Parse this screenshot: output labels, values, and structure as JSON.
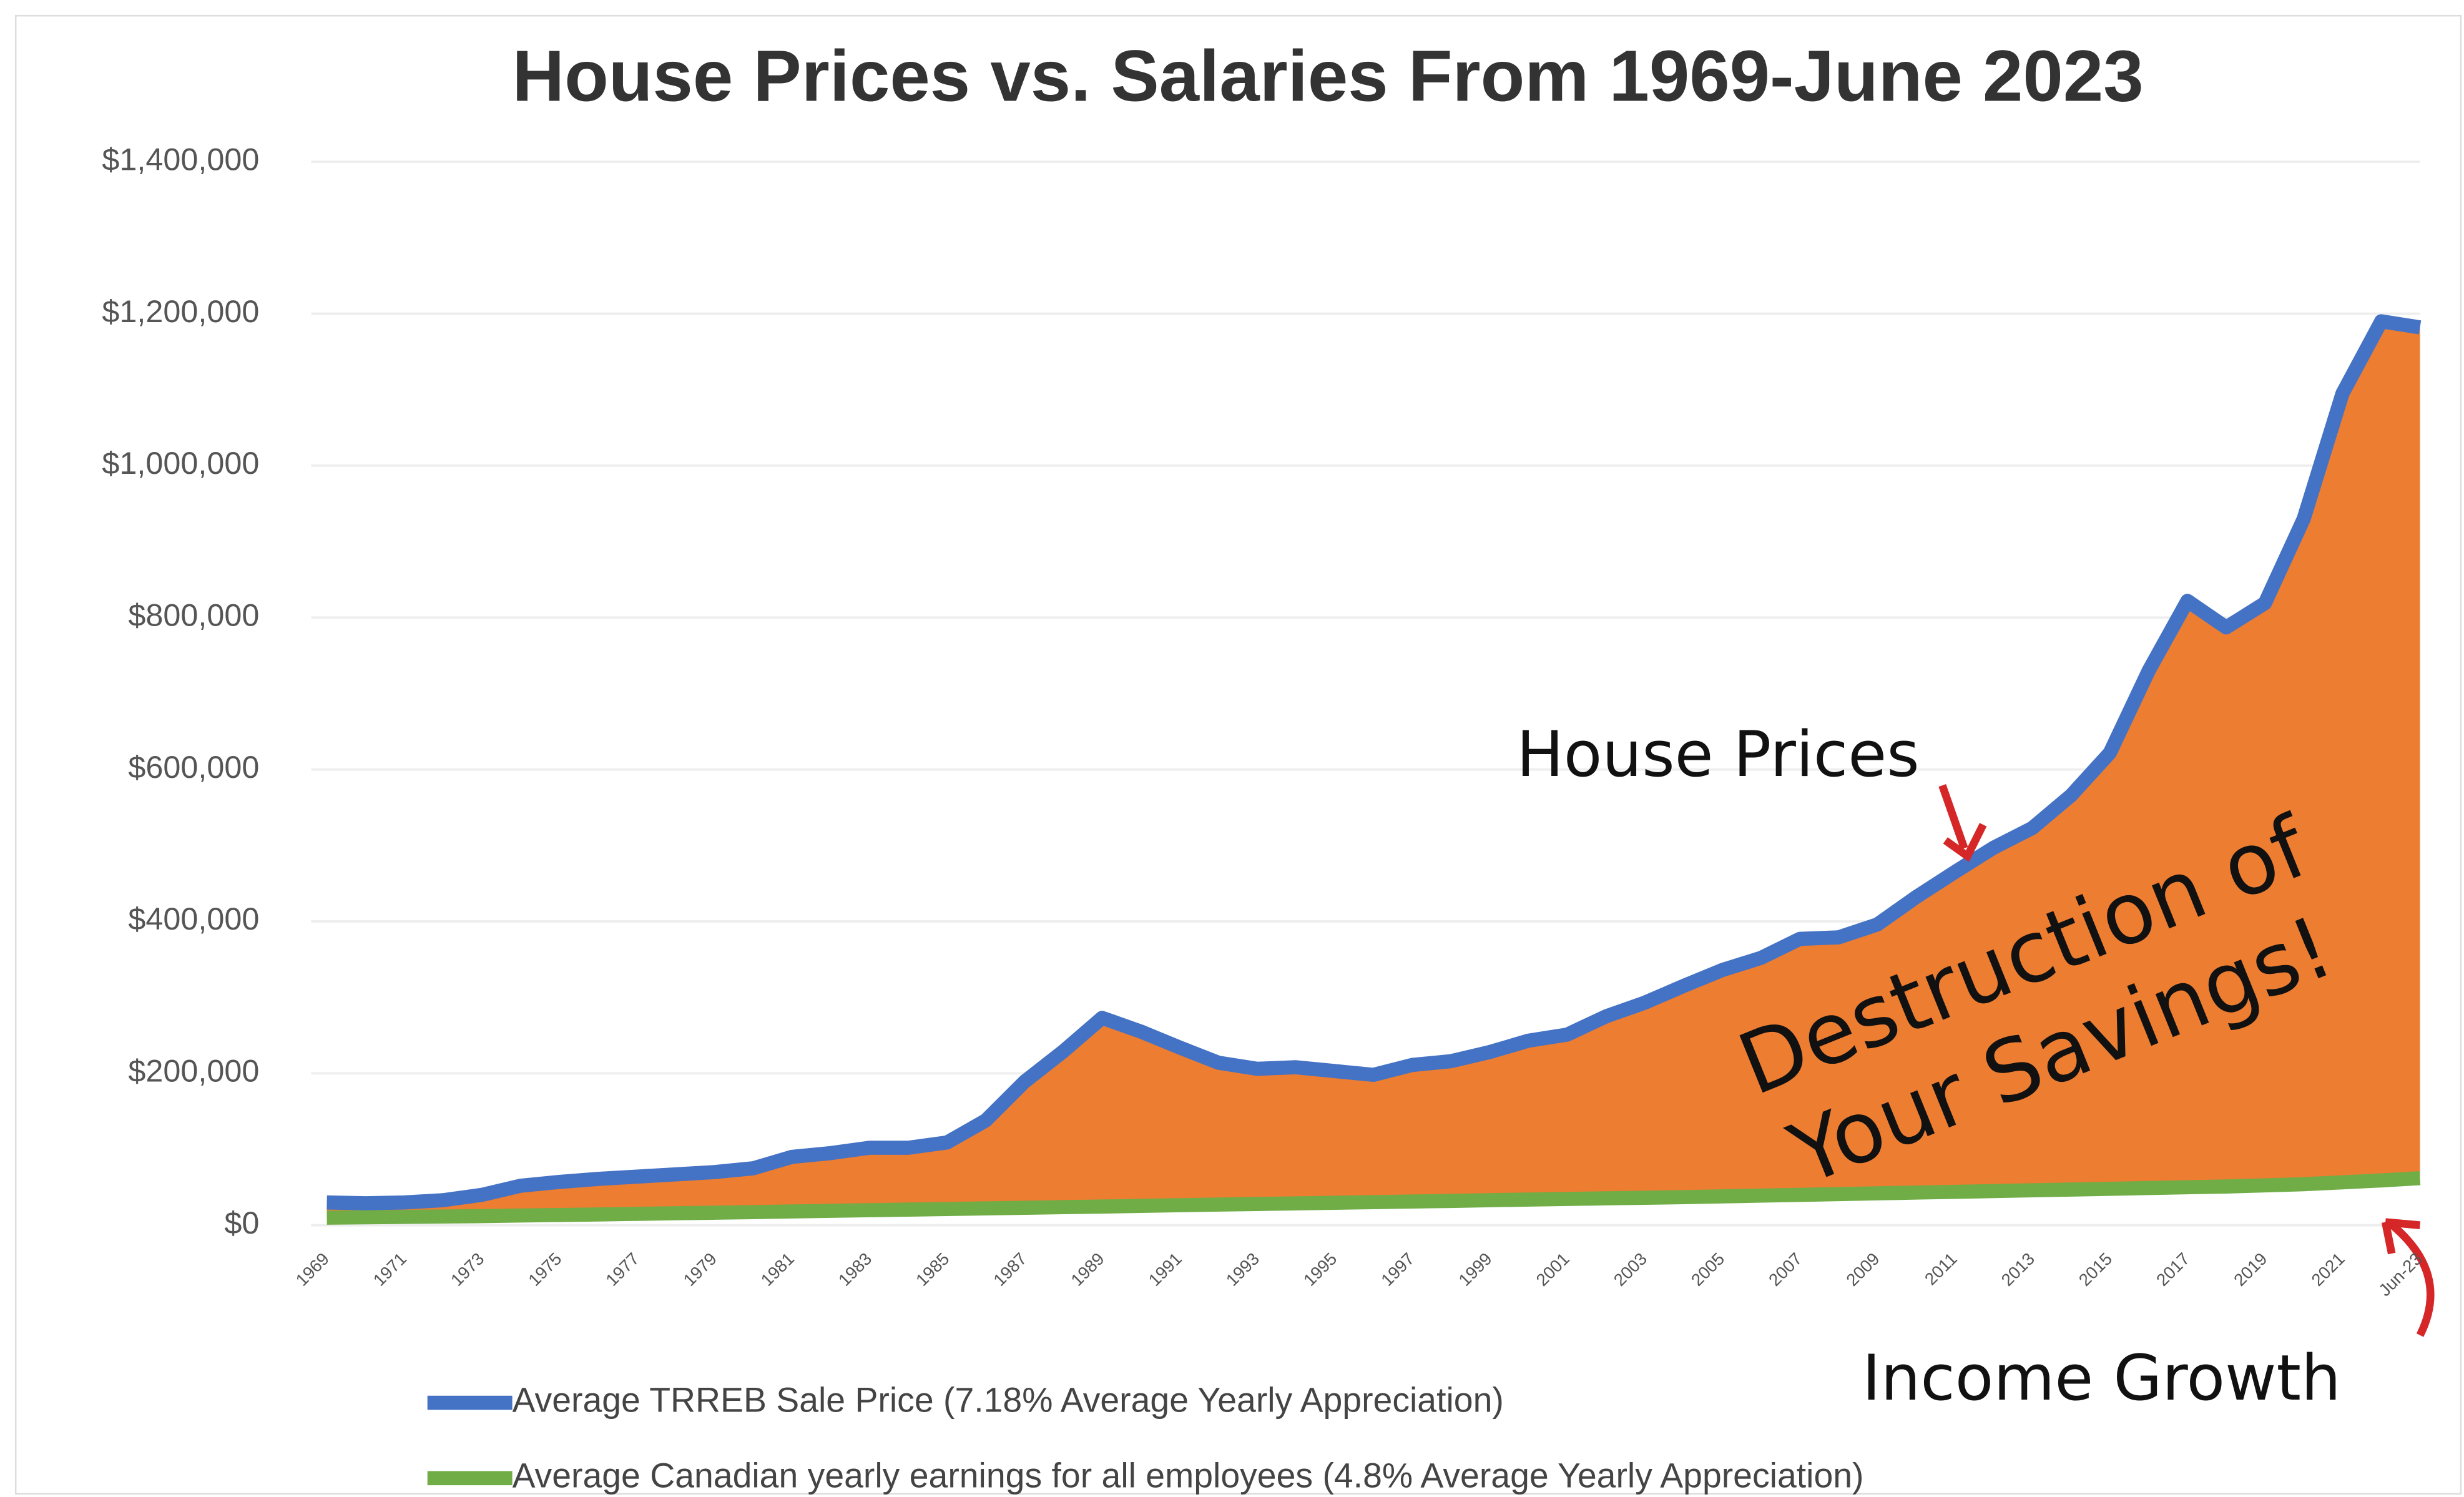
{
  "chart_data": {
    "type": "line",
    "title": "House Prices vs. Salaries From 1969-June 2023",
    "categories": [
      "1969",
      null,
      "1971",
      null,
      "1973",
      null,
      "1975",
      null,
      "1977",
      null,
      "1979",
      null,
      "1981",
      null,
      "1983",
      null,
      "1985",
      null,
      "1987",
      null,
      "1989",
      null,
      "1991",
      null,
      "1993",
      null,
      "1995",
      null,
      "1997",
      null,
      "1999",
      null,
      "2001",
      null,
      "2003",
      null,
      "2005",
      null,
      "2007",
      null,
      "2009",
      null,
      "2011",
      null,
      "2013",
      null,
      "2015",
      null,
      "2017",
      null,
      "2019",
      null,
      "2021",
      null,
      "Jun-23"
    ],
    "series": [
      {
        "name": "Average TRREB Sale Price (7.18% Average Yearly Appreciation)",
        "color": "#4472c4",
        "values": [
          30000,
          29000,
          30000,
          33000,
          40000,
          52000,
          57000,
          61000,
          64000,
          67000,
          70000,
          75000,
          90000,
          95000,
          102000,
          102000,
          109000,
          138000,
          189000,
          229000,
          273000,
          255000,
          234000,
          214000,
          206000,
          208000,
          203000,
          198000,
          211000,
          216000,
          228000,
          243000,
          251000,
          275000,
          293000,
          315000,
          336000,
          352000,
          377000,
          379000,
          396000,
          432000,
          465000,
          497000,
          523000,
          566000,
          622000,
          730000,
          822000,
          787000,
          819000,
          930000,
          1095000,
          1190000,
          1182000
        ]
      },
      {
        "name": "Average Canadian yearly earnings for all employees (4.8% Average Yearly Appreciation)",
        "color": "#70ad47",
        "values": [
          10000,
          10500,
          11000,
          11500,
          12000,
          12800,
          13500,
          14200,
          15000,
          15800,
          16500,
          17300,
          18200,
          19000,
          19800,
          20600,
          21400,
          22200,
          23000,
          23800,
          24600,
          25500,
          26400,
          27200,
          28000,
          28800,
          29600,
          30400,
          31200,
          32000,
          33000,
          33800,
          34600,
          35400,
          36200,
          37000,
          38000,
          39000,
          40000,
          41000,
          42000,
          43000,
          44000,
          45000,
          46000,
          47000,
          48000,
          49000,
          50000,
          51000,
          52500,
          54000,
          56500,
          59000,
          62000
        ]
      }
    ],
    "area_color": "#ed7d31",
    "ylim": [
      0,
      1400000
    ],
    "yticks": [
      {
        "value": 0,
        "label": "$0"
      },
      {
        "value": 200000,
        "label": "$200,000"
      },
      {
        "value": 400000,
        "label": "$400,000"
      },
      {
        "value": 600000,
        "label": "$600,000"
      },
      {
        "value": 800000,
        "label": "$800,000"
      },
      {
        "value": 1000000,
        "label": "$1,000,000"
      },
      {
        "value": 1200000,
        "label": "$1,200,000"
      },
      {
        "value": 1400000,
        "label": "$1,400,000"
      }
    ],
    "grid": true,
    "legend": "bottom",
    "annotations": [
      "House Prices",
      "Destruction of",
      "Your Savings!",
      "Income Growth"
    ]
  }
}
